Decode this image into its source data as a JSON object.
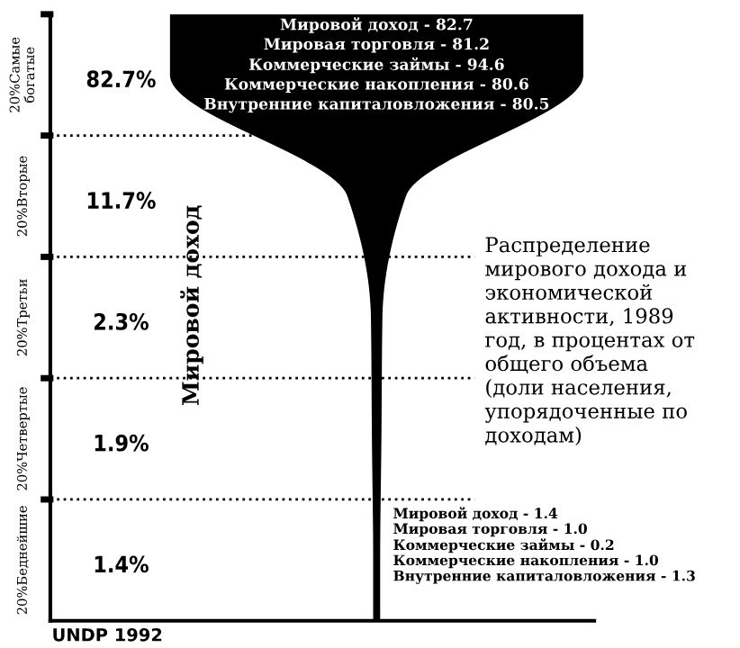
{
  "chart_data": {
    "type": "other",
    "title": "Распределение\nмирового дохода и\nэкономической\nактивности, 1989\nгод, в процентах от\nобщего объема\n(доли населения,\nупорядоченные по\nдоходам)",
    "categories": [
      "20%Самые\nбогатые",
      "20%Вторые",
      "20%Третьи",
      "20%Четвертые",
      "20%Беднейшие"
    ],
    "values": [
      82.7,
      11.7,
      2.3,
      1.9,
      1.4
    ],
    "value_labels": [
      "82.7%",
      "11.7%",
      "2.3%",
      "1.9%",
      "1.4%"
    ],
    "color": "#000000",
    "annotations": [
      "Мировой доход - 82.7",
      "Мировая торговля - 81.2",
      "Коммерческие займы - 94.6",
      "Коммерческие накопления - 80.6",
      "Внутренние капиталовложения - 80.5",
      "Мировой доход - 1.4",
      "Мировая торговля - 1.0",
      "Коммерческие займы - 0.2",
      "Коммерческие накопления - 1.0",
      "Внутренние капиталовложения - 1.3",
      "Мировой доход",
      "UNDP 1992"
    ]
  }
}
